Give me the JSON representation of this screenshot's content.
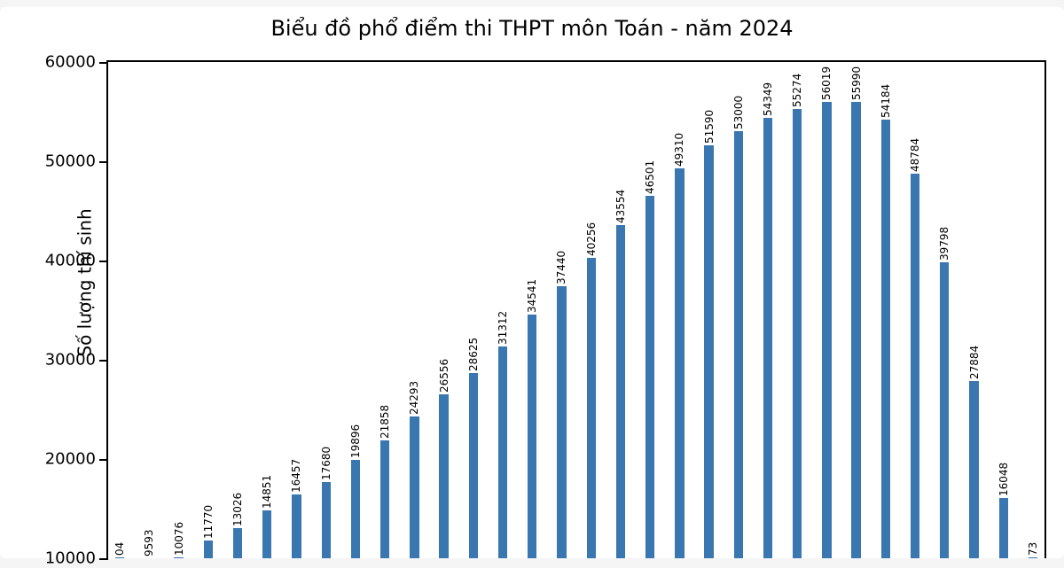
{
  "chart": {
    "type": "bar",
    "title": "Biểu đồ phổ điểm thi THPT môn Toán - năm 2024",
    "title_fontsize": 24,
    "ylabel": "Số lượng thí sinh",
    "ylabel_fontsize": 20,
    "ymin": 10000,
    "ymax": 60000,
    "ytick_step": 10000,
    "yticks": [
      10000,
      20000,
      30000,
      40000,
      50000,
      60000
    ],
    "ytick_fontsize": 18,
    "bar_color": "#3a76af",
    "background_color": "#ffffff",
    "axis_color": "#000000",
    "bar_label_fontsize": 12,
    "bar_label_rotation_deg": 90,
    "values": [
      9593,
      10076,
      11770,
      13026,
      14851,
      16457,
      17680,
      19896,
      21858,
      24293,
      26556,
      28625,
      31312,
      34541,
      37440,
      40256,
      43554,
      46501,
      49310,
      51590,
      53000,
      54349,
      55274,
      56019,
      55990,
      54184,
      48784,
      39798,
      27884,
      16048
    ],
    "partial_values_left": [
      "04"
    ],
    "partial_values_right": [
      "73"
    ]
  }
}
